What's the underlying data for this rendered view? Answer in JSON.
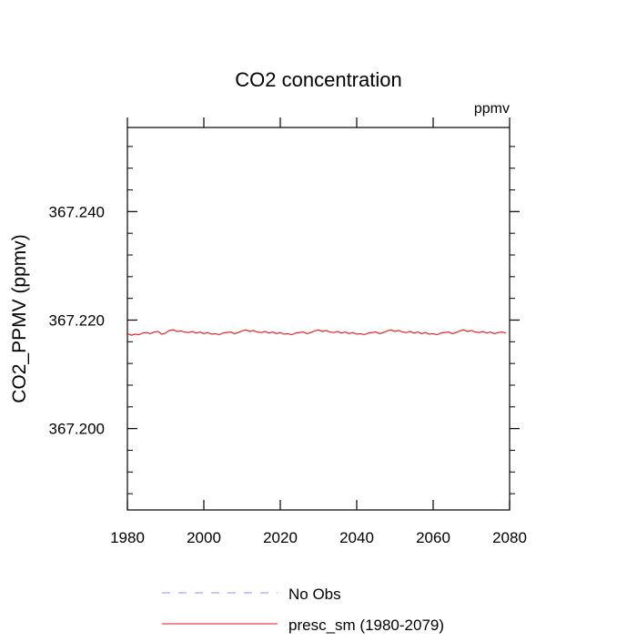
{
  "chart_data": {
    "type": "line",
    "title": "CO2 concentration",
    "units": "ppmv",
    "xlabel": "",
    "ylabel": "CO2_PPMV  (ppmv)",
    "xlim": [
      1980,
      2080
    ],
    "ylim": [
      367.185,
      367.2555
    ],
    "x_ticks": [
      1980,
      2000,
      2020,
      2040,
      2060,
      2080
    ],
    "x_tick_labels": [
      "1980",
      "2000",
      "2020",
      "2040",
      "2060",
      "2080"
    ],
    "y_ticks": [
      367.2,
      367.22,
      367.24
    ],
    "y_tick_labels": [
      "367.200",
      "367.220",
      "367.240"
    ],
    "series": [
      {
        "name": "No Obs",
        "style": "dashed",
        "color": "#8f8ff0",
        "x": [],
        "values": []
      },
      {
        "name": "presc_sm (1980-2079)",
        "style": "solid",
        "color": "#ee1111",
        "x": [
          1980,
          1981,
          1982,
          1983,
          1984,
          1985,
          1986,
          1987,
          1988,
          1989,
          1990,
          1991,
          1992,
          1993,
          1994,
          1995,
          1996,
          1997,
          1998,
          1999,
          2000,
          2001,
          2002,
          2003,
          2004,
          2005,
          2006,
          2007,
          2008,
          2009,
          2010,
          2011,
          2012,
          2013,
          2014,
          2015,
          2016,
          2017,
          2018,
          2019,
          2020,
          2021,
          2022,
          2023,
          2024,
          2025,
          2026,
          2027,
          2028,
          2029,
          2030,
          2031,
          2032,
          2033,
          2034,
          2035,
          2036,
          2037,
          2038,
          2039,
          2040,
          2041,
          2042,
          2043,
          2044,
          2045,
          2046,
          2047,
          2048,
          2049,
          2050,
          2051,
          2052,
          2053,
          2054,
          2055,
          2056,
          2057,
          2058,
          2059,
          2060,
          2061,
          2062,
          2063,
          2064,
          2065,
          2066,
          2067,
          2068,
          2069,
          2070,
          2071,
          2072,
          2073,
          2074,
          2075,
          2076,
          2077,
          2078,
          2079
        ],
        "values": [
          367.2175,
          367.2172,
          367.2174,
          367.2173,
          367.2176,
          367.2177,
          367.2175,
          367.2178,
          367.2179,
          367.2174,
          367.2176,
          367.2181,
          367.2182,
          367.2179,
          367.218,
          367.2178,
          367.2177,
          367.2179,
          367.2176,
          367.2178,
          367.2175,
          367.2177,
          367.2174,
          367.2175,
          367.2173,
          367.2176,
          367.2177,
          367.2178,
          367.2175,
          367.2177,
          367.218,
          367.2182,
          367.2179,
          367.2181,
          367.2178,
          367.2177,
          367.2179,
          367.2176,
          367.2178,
          367.2175,
          367.2177,
          367.2174,
          367.2175,
          367.2173,
          367.2176,
          367.2177,
          367.2178,
          367.2175,
          367.2177,
          367.218,
          367.2182,
          367.2179,
          367.2181,
          367.2178,
          367.2177,
          367.2179,
          367.2176,
          367.2178,
          367.2175,
          367.2177,
          367.2174,
          367.2175,
          367.2173,
          367.2176,
          367.2177,
          367.2178,
          367.2175,
          367.2177,
          367.218,
          367.2182,
          367.2179,
          367.2181,
          367.2178,
          367.2177,
          367.2179,
          367.2176,
          367.2178,
          367.2175,
          367.2177,
          367.2174,
          367.2175,
          367.2173,
          367.2176,
          367.2177,
          367.2178,
          367.2175,
          367.2177,
          367.218,
          367.2182,
          367.2179,
          367.2181,
          367.2178,
          367.2177,
          367.2179,
          367.2176,
          367.2178,
          367.2175,
          367.2177,
          367.2178,
          367.2176
        ]
      }
    ],
    "legend": [
      "No Obs",
      "presc_sm (1980-2079)"
    ],
    "legend_placement": "bottom",
    "grid": false
  }
}
